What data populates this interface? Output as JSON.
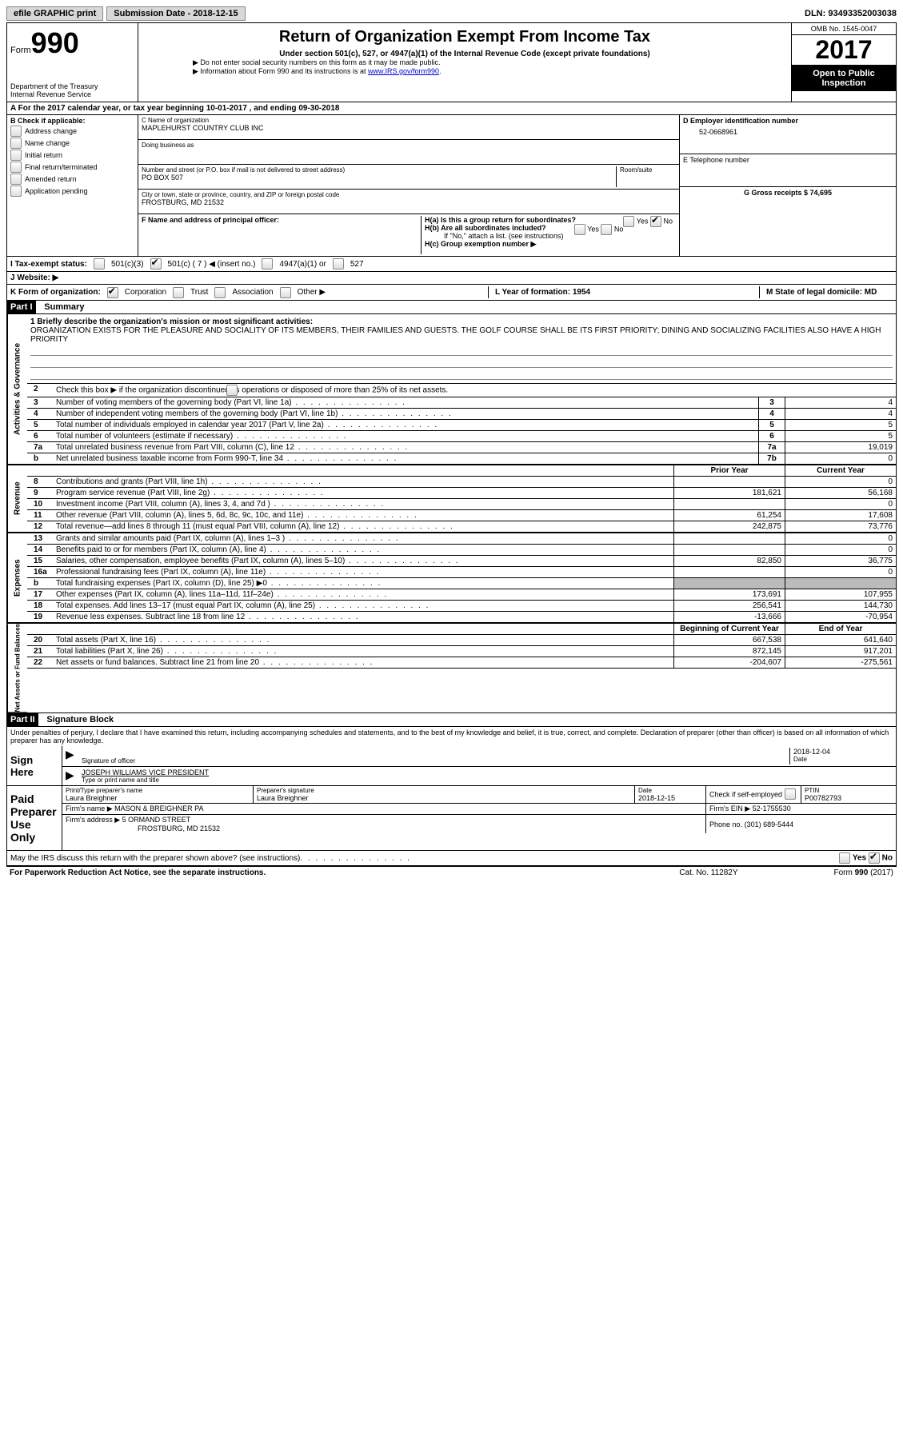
{
  "top": {
    "efile": "efile GRAPHIC print",
    "submission": "Submission Date - 2018-12-15",
    "dln": "DLN: 93493352003038"
  },
  "header": {
    "form_label": "Form",
    "form_number": "990",
    "dept": "Department of the Treasury",
    "irs": "Internal Revenue Service",
    "title": "Return of Organization Exempt From Income Tax",
    "subtitle": "Under section 501(c), 527, or 4947(a)(1) of the Internal Revenue Code (except private foundations)",
    "note1": "▶ Do not enter social security numbers on this form as it may be made public.",
    "note2_pre": "▶ Information about Form 990 and its instructions is at ",
    "note2_link": "www.IRS.gov/form990",
    "omb": "OMB No. 1545-0047",
    "year": "2017",
    "open": "Open to Public Inspection"
  },
  "row_a": "A  For the 2017 calendar year, or tax year beginning 10-01-2017   , and ending 09-30-2018",
  "col_b": {
    "header": "B Check if applicable:",
    "items": [
      "Address change",
      "Name change",
      "Initial return",
      "Final return/terminated",
      "Amended return",
      "Application pending"
    ]
  },
  "col_c": {
    "name_label": "C Name of organization",
    "name": "MAPLEHURST COUNTRY CLUB INC",
    "dba_label": "Doing business as",
    "street_label": "Number and street (or P.O. box if mail is not delivered to street address)",
    "room_label": "Room/suite",
    "street": "PO BOX 507",
    "city_label": "City or town, state or province, country, and ZIP or foreign postal code",
    "city": "FROSTBURG, MD  21532",
    "f_label": "F Name and address of principal officer:"
  },
  "col_d": {
    "ein_label": "D Employer identification number",
    "ein": "52-0668961",
    "phone_label": "E Telephone number",
    "gross_label": "G Gross receipts $ 74,695"
  },
  "col_h": {
    "h_a": "H(a)  Is this a group return for subordinates?",
    "h_b": "H(b)  Are all subordinates included?",
    "h_note": "If \"No,\" attach a list. (see instructions)",
    "h_c": "H(c)  Group exemption number ▶",
    "yes": "Yes",
    "no": "No"
  },
  "row_i": {
    "label": "I  Tax-exempt status:",
    "opt1": "501(c)(3)",
    "opt2": "501(c) ( 7 ) ◀ (insert no.)",
    "opt3": "4947(a)(1) or",
    "opt4": "527"
  },
  "row_j": "J  Website: ▶",
  "row_k": {
    "label": "K Form of organization:",
    "corp": "Corporation",
    "trust": "Trust",
    "assoc": "Association",
    "other": "Other ▶",
    "l": "L Year of formation: 1954",
    "m": "M State of legal domicile: MD"
  },
  "part1": {
    "header": "Part I",
    "title": "Summary",
    "line1_label": "1  Briefly describe the organization's mission or most significant activities:",
    "mission": "ORGANIZATION EXISTS FOR THE PLEASURE AND SOCIALITY OF ITS MEMBERS, THEIR FAMILIES AND GUESTS. THE GOLF COURSE SHALL BE ITS FIRST PRIORITY; DINING AND SOCIALIZING FACILITIES ALSO HAVE A HIGH PRIORITY",
    "line2": "Check this box ▶      if the organization discontinued its operations or disposed of more than 25% of its net assets.",
    "vtab_ag": "Activities & Governance",
    "vtab_rev": "Revenue",
    "vtab_exp": "Expenses",
    "vtab_na": "Net Assets or Fund Balances",
    "rows_ag": [
      {
        "n": "3",
        "d": "Number of voting members of the governing body (Part VI, line 1a)",
        "box": "3",
        "v": "4"
      },
      {
        "n": "4",
        "d": "Number of independent voting members of the governing body (Part VI, line 1b)",
        "box": "4",
        "v": "4"
      },
      {
        "n": "5",
        "d": "Total number of individuals employed in calendar year 2017 (Part V, line 2a)",
        "box": "5",
        "v": "5"
      },
      {
        "n": "6",
        "d": "Total number of volunteers (estimate if necessary)",
        "box": "6",
        "v": "5"
      },
      {
        "n": "7a",
        "d": "Total unrelated business revenue from Part VIII, column (C), line 12",
        "box": "7a",
        "v": "19,019"
      },
      {
        "n": "b",
        "d": "Net unrelated business taxable income from Form 990-T, line 34",
        "box": "7b",
        "v": "0"
      }
    ],
    "header_prior": "Prior Year",
    "header_current": "Current Year",
    "rows_rev": [
      {
        "n": "8",
        "d": "Contributions and grants (Part VIII, line 1h)",
        "p": "",
        "c": "0"
      },
      {
        "n": "9",
        "d": "Program service revenue (Part VIII, line 2g)",
        "p": "181,621",
        "c": "56,168"
      },
      {
        "n": "10",
        "d": "Investment income (Part VIII, column (A), lines 3, 4, and 7d )",
        "p": "",
        "c": "0"
      },
      {
        "n": "11",
        "d": "Other revenue (Part VIII, column (A), lines 5, 6d, 8c, 9c, 10c, and 11e)",
        "p": "61,254",
        "c": "17,608"
      },
      {
        "n": "12",
        "d": "Total revenue—add lines 8 through 11 (must equal Part VIII, column (A), line 12)",
        "p": "242,875",
        "c": "73,776"
      }
    ],
    "rows_exp": [
      {
        "n": "13",
        "d": "Grants and similar amounts paid (Part IX, column (A), lines 1–3 )",
        "p": "",
        "c": "0"
      },
      {
        "n": "14",
        "d": "Benefits paid to or for members (Part IX, column (A), line 4)",
        "p": "",
        "c": "0"
      },
      {
        "n": "15",
        "d": "Salaries, other compensation, employee benefits (Part IX, column (A), lines 5–10)",
        "p": "82,850",
        "c": "36,775"
      },
      {
        "n": "16a",
        "d": "Professional fundraising fees (Part IX, column (A), line 11e)",
        "p": "",
        "c": "0"
      },
      {
        "n": "b",
        "d": "Total fundraising expenses (Part IX, column (D), line 25) ▶0",
        "p": "SHADE",
        "c": "SHADE"
      },
      {
        "n": "17",
        "d": "Other expenses (Part IX, column (A), lines 11a–11d, 11f–24e)",
        "p": "173,691",
        "c": "107,955"
      },
      {
        "n": "18",
        "d": "Total expenses. Add lines 13–17 (must equal Part IX, column (A), line 25)",
        "p": "256,541",
        "c": "144,730"
      },
      {
        "n": "19",
        "d": "Revenue less expenses. Subtract line 18 from line 12",
        "p": "-13,666",
        "c": "-70,954"
      }
    ],
    "header_begin": "Beginning of Current Year",
    "header_end": "End of Year",
    "rows_na": [
      {
        "n": "20",
        "d": "Total assets (Part X, line 16)",
        "p": "667,538",
        "c": "641,640"
      },
      {
        "n": "21",
        "d": "Total liabilities (Part X, line 26)",
        "p": "872,145",
        "c": "917,201"
      },
      {
        "n": "22",
        "d": "Net assets or fund balances. Subtract line 21 from line 20",
        "p": "-204,607",
        "c": "-275,561"
      }
    ]
  },
  "part2": {
    "header": "Part II",
    "title": "Signature Block",
    "perjury": "Under penalties of perjury, I declare that I have examined this return, including accompanying schedules and statements, and to the best of my knowledge and belief, it is true, correct, and complete. Declaration of preparer (other than officer) is based on all information of which preparer has any knowledge.",
    "sign_here": "Sign Here",
    "sig_officer": "Signature of officer",
    "sig_date": "2018-12-04",
    "date_label": "Date",
    "officer_name": "JOSEPH WILLIAMS  VICE PRESIDENT",
    "type_name": "Type or print name and title",
    "paid": "Paid Preparer Use Only",
    "prep_name_label": "Print/Type preparer's name",
    "prep_name": "Laura Breighner",
    "prep_sig_label": "Preparer's signature",
    "prep_sig": "Laura Breighner",
    "prep_date_label": "Date",
    "prep_date": "2018-12-15",
    "check_self": "Check       if self-employed",
    "ptin_label": "PTIN",
    "ptin": "P00782793",
    "firm_name_label": "Firm's name    ▶",
    "firm_name": "MASON & BREIGHNER PA",
    "firm_ein_label": "Firm's EIN ▶",
    "firm_ein": "52-1755530",
    "firm_addr_label": "Firm's address ▶",
    "firm_addr": "5 ORMAND STREET",
    "firm_city": "FROSTBURG, MD  21532",
    "phone_label": "Phone no.",
    "phone": "(301) 689-5444",
    "discuss": "May the IRS discuss this return with the preparer shown above? (see instructions)"
  },
  "footer": {
    "pra": "For Paperwork Reduction Act Notice, see the separate instructions.",
    "cat": "Cat. No. 11282Y",
    "form": "Form 990 (2017)"
  }
}
